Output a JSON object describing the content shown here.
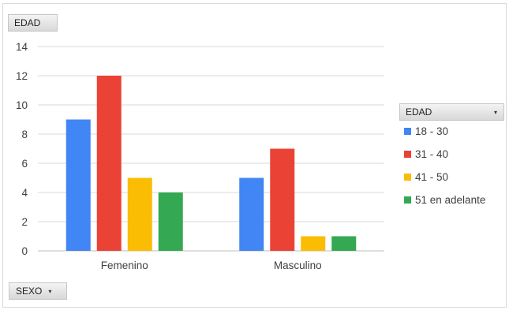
{
  "buttons": {
    "top_field": "EDAD",
    "axis_field": "SEXO",
    "legend_field": "EDAD",
    "dropdown_glyph": "▾"
  },
  "chart_data": {
    "type": "bar",
    "categories": [
      "Femenino",
      "Masculino"
    ],
    "series": [
      {
        "name": "18 - 30",
        "values": [
          9,
          5
        ],
        "color": "#4285f4"
      },
      {
        "name": "31 - 40",
        "values": [
          12,
          7
        ],
        "color": "#ea4335"
      },
      {
        "name": "41 - 50",
        "values": [
          5,
          1
        ],
        "color": "#fbbc04"
      },
      {
        "name": "51 en adelante",
        "values": [
          4,
          1
        ],
        "color": "#34a853"
      }
    ],
    "ylim": [
      0,
      14
    ],
    "yticks": [
      0,
      2,
      4,
      6,
      8,
      10,
      12,
      14
    ],
    "grid": true,
    "legend_position": "right"
  }
}
